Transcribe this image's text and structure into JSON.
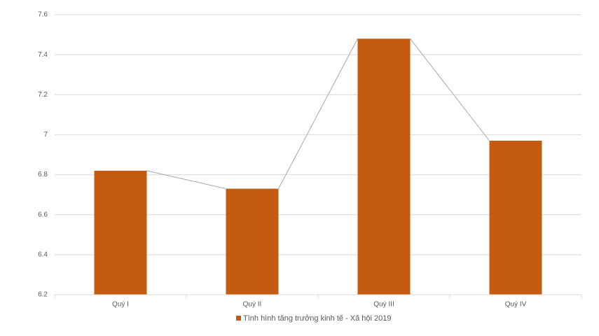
{
  "chart_data": {
    "type": "bar",
    "categories": [
      "Quý I",
      "Quý II",
      "Quý III",
      "Quý IV"
    ],
    "series": [
      {
        "name": "Tình hình tăng trưởng kinh tế - Xã hội 2019",
        "color": "#c55a11",
        "values": [
          6.82,
          6.73,
          7.48,
          6.97
        ]
      }
    ],
    "ylim": [
      6.2,
      7.6
    ],
    "yticks": [
      6.2,
      6.4,
      6.6,
      6.8,
      7,
      7.2,
      7.4,
      7.6
    ],
    "grid": true,
    "series_lines": true,
    "legend": "bottom"
  }
}
